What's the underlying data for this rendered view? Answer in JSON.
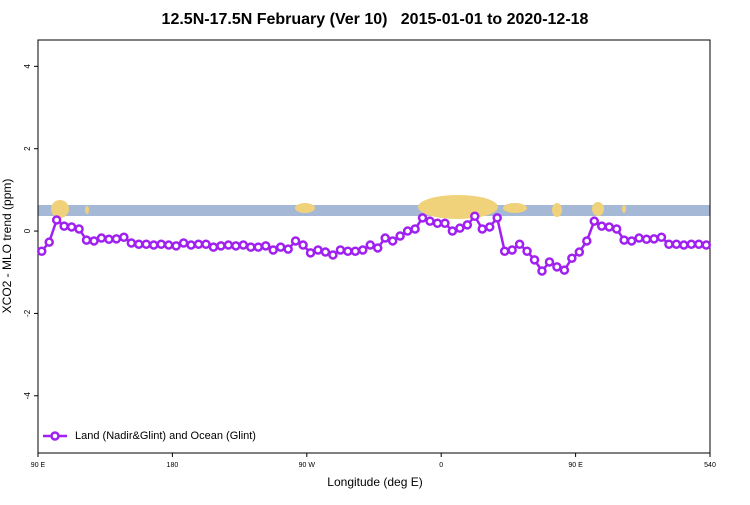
{
  "chart_data": {
    "type": "line",
    "title": "12.5N-17.5N February (Ver 10)   2015-01-01 to 2020-12-18",
    "xlabel": "Longitude (deg E)",
    "ylabel": "XCO2 - MLO trend (ppm)",
    "x": [
      92.5,
      97.5,
      102.5,
      107.5,
      112.5,
      117.5,
      122.5,
      127.5,
      132.5,
      137.5,
      142.5,
      147.5,
      152.5,
      157.5,
      162.5,
      167.5,
      172.5,
      177.5,
      182.5,
      187.5,
      192.5,
      197.5,
      202.5,
      207.5,
      212.5,
      217.5,
      222.5,
      227.5,
      232.5,
      237.5,
      242.5,
      247.5,
      252.5,
      257.5,
      262.5,
      267.5,
      272.5,
      277.5,
      282.5,
      287.5,
      292.5,
      297.5,
      302.5,
      307.5,
      312.5,
      317.5,
      322.5,
      327.5,
      332.5,
      337.5,
      342.5,
      347.5,
      352.5,
      357.5,
      362.5,
      367.5,
      372.5,
      377.5,
      382.5,
      387.5,
      392.5,
      397.5,
      402.5,
      407.5,
      412.5,
      417.5,
      422.5,
      427.5,
      432.5,
      437.5,
      442.5,
      447.5,
      452.5,
      457.5,
      462.5,
      467.5,
      472.5,
      477.5,
      482.5,
      487.5,
      492.5,
      497.5,
      502.5,
      507.5,
      512.5,
      517.5,
      522.5,
      527.5,
      532.5,
      537.5
    ],
    "series": [
      {
        "name": "Land (Nadir&Glint) and Ocean (Glint)",
        "color": "#a020f0",
        "values": [
          -0.49,
          -0.27,
          0.27,
          0.12,
          0.1,
          0.05,
          -0.22,
          -0.24,
          -0.17,
          -0.2,
          -0.19,
          -0.15,
          -0.29,
          -0.32,
          -0.32,
          -0.34,
          -0.32,
          -0.34,
          -0.36,
          -0.29,
          -0.34,
          -0.32,
          -0.32,
          -0.39,
          -0.36,
          -0.34,
          -0.36,
          -0.34,
          -0.39,
          -0.39,
          -0.36,
          -0.46,
          -0.39,
          -0.44,
          -0.24,
          -0.34,
          -0.53,
          -0.46,
          -0.51,
          -0.58,
          -0.46,
          -0.49,
          -0.49,
          -0.46,
          -0.34,
          -0.41,
          -0.17,
          -0.24,
          -0.12,
          0,
          0.05,
          0.32,
          0.24,
          0.19,
          0.19,
          0,
          0.07,
          0.15,
          0.36,
          0.05,
          0.1,
          0.32,
          -0.49,
          -0.46,
          -0.32,
          -0.49,
          -0.7,
          -0.97,
          -0.75,
          -0.87,
          -0.95,
          -0.66,
          -0.51,
          -0.24,
          0.24,
          0.12,
          0.1,
          0.05,
          -0.22,
          -0.24,
          -0.17,
          -0.2,
          -0.19,
          -0.15,
          -0.32,
          -0.32,
          -0.34,
          -0.32,
          -0.32,
          -0.34
        ]
      }
    ],
    "xlim": [
      90,
      540
    ],
    "ylim": [
      -5.39,
      4.64
    ],
    "xticks": [
      {
        "value": 90,
        "label": "90 E"
      },
      180,
      {
        "value": 270,
        "label": "90 W"
      },
      {
        "value": 360,
        "label": "0"
      },
      {
        "value": 450,
        "label": "90 E"
      },
      540
    ],
    "yticks": [
      -4,
      -2,
      0,
      2,
      4
    ],
    "legend": "bottom-left"
  }
}
